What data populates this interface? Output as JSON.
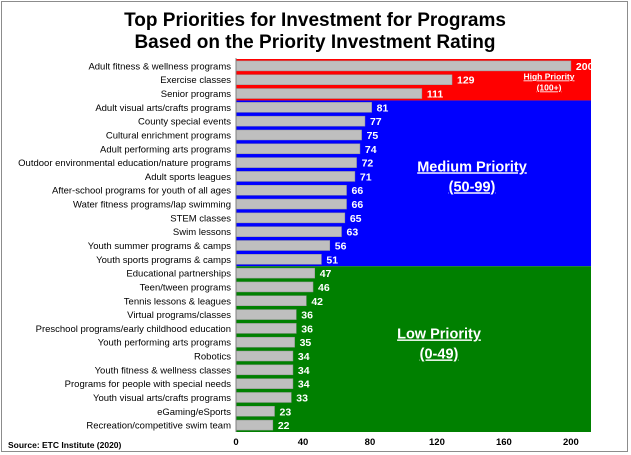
{
  "chart_data": {
    "type": "bar",
    "orientation": "horizontal",
    "title_lines": [
      "Top Priorities for Investment for Programs",
      "Based on the Priority Investment Rating"
    ],
    "categories": [
      "Adult fitness & wellness programs",
      "Exercise classes",
      "Senior programs",
      "Adult visual arts/crafts programs",
      "County special events",
      "Cultural enrichment programs",
      "Adult performing arts programs",
      "Outdoor environmental education/nature programs",
      "Adult sports leagues",
      "After-school programs for youth of all ages",
      "Water fitness programs/lap swimming",
      "STEM classes",
      "Swim lessons",
      "Youth summer programs & camps",
      "Youth sports programs & camps",
      "Educational partnerships",
      "Teen/tween programs",
      "Tennis lessons & leagues",
      "Virtual programs/classes",
      "Preschool programs/early childhood education",
      "Youth performing arts programs",
      "Robotics",
      "Youth fitness & wellness classes",
      "Programs for people with special needs",
      "Youth visual arts/crafts programs",
      "eGaming/eSports",
      "Recreation/competitive swim team"
    ],
    "values": [
      200,
      129,
      111,
      81,
      77,
      75,
      74,
      72,
      71,
      66,
      66,
      65,
      63,
      56,
      51,
      47,
      46,
      42,
      36,
      36,
      35,
      34,
      34,
      34,
      33,
      23,
      22
    ],
    "xlim": [
      0,
      212
    ],
    "x_ticks": [
      0,
      40,
      80,
      120,
      160,
      200
    ],
    "zones": [
      {
        "name": "high",
        "label_lines": [
          "High Priority",
          "(100+)"
        ],
        "color": "#ff0000",
        "first": 0,
        "last": 2
      },
      {
        "name": "medium",
        "label_lines": [
          "Medium Priority",
          "(50-99)"
        ],
        "color": "#0000ff",
        "first": 3,
        "last": 14
      },
      {
        "name": "low",
        "label_lines": [
          "Low Priority",
          "(0-49)"
        ],
        "color": "#008000",
        "first": 15,
        "last": 26
      }
    ],
    "bar_color": "#bfbfbf",
    "source": "Source:  ETC Institute (2020)"
  }
}
